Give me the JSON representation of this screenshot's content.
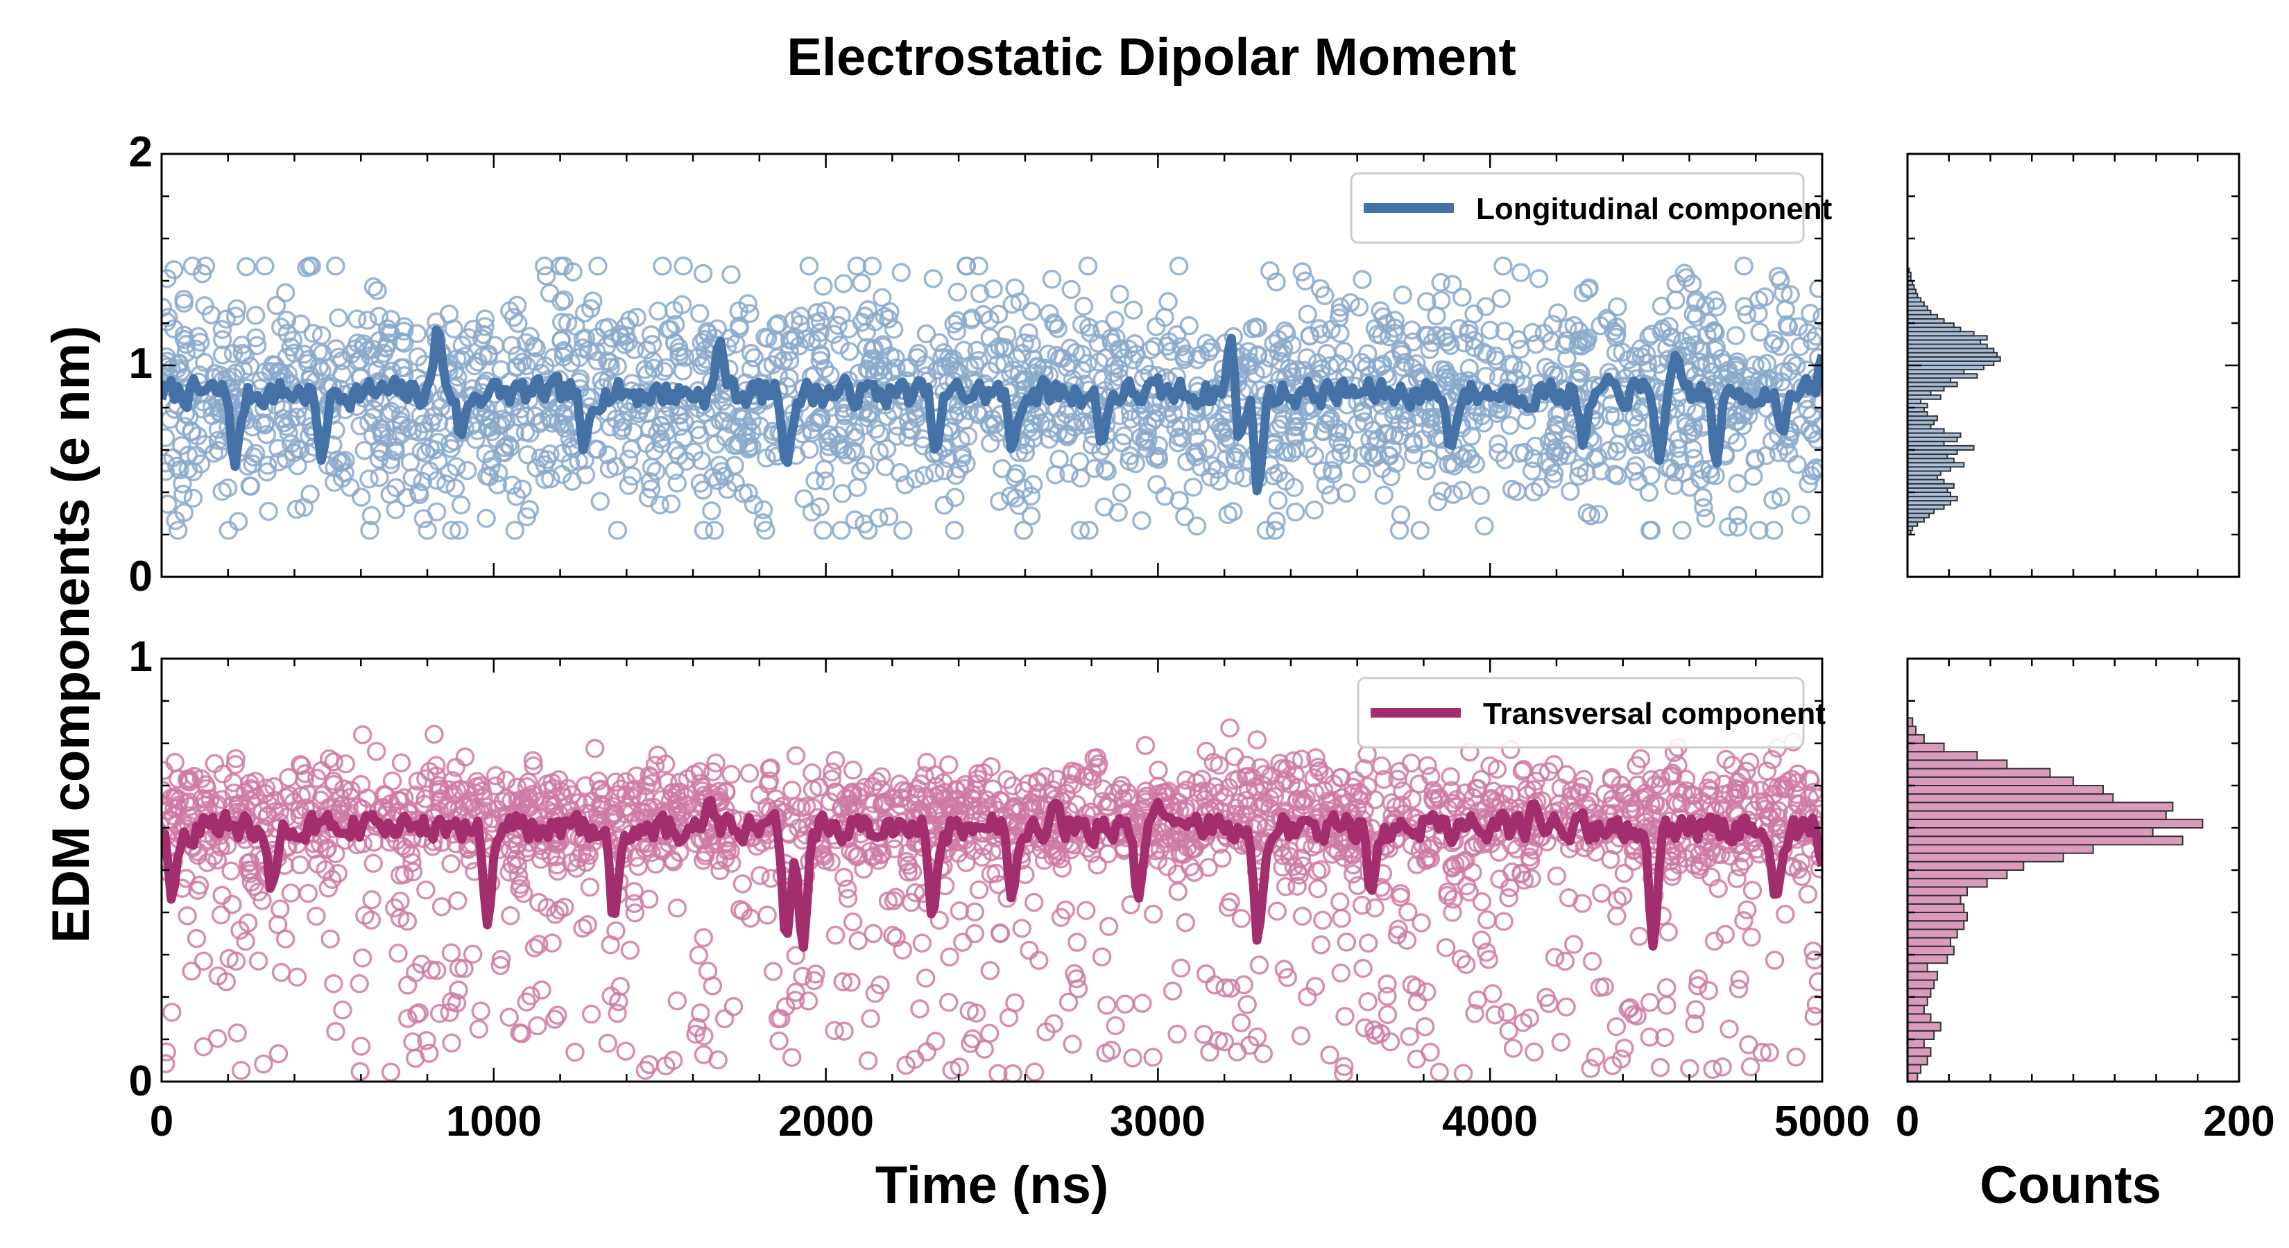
{
  "chart_data": {
    "type": "scatter",
    "title": "Electrostatic Dipolar Moment",
    "ylabel": "EDM components (e nm)",
    "xlabel": "Time (ns)",
    "hist_xlabel": "Counts",
    "xlim": [
      0,
      5000
    ],
    "x_ticks": [
      "0",
      "1000",
      "2000",
      "3000",
      "4000",
      "5000"
    ],
    "hist_xlim": [
      0,
      200
    ],
    "hist_x_ticks": [
      "0",
      "200"
    ],
    "panels": [
      {
        "name": "longitudinal",
        "legend": "Longitudinal component",
        "color": "#4472a6",
        "marker_color": "#8aa9cb",
        "ylim": [
          0,
          2
        ],
        "y_ticks": [
          "0",
          "1",
          "2"
        ],
        "scatter_center": 0.85,
        "scatter_spread": 0.27,
        "scatter_min": 0.22,
        "scatter_max": 1.47,
        "n_points": 2200,
        "running_mean": {
          "baseline": 0.87,
          "dips": [
            [
              220,
              0.52
            ],
            [
              480,
              0.55
            ],
            [
              900,
              0.66
            ],
            [
              1270,
              0.6
            ],
            [
              1880,
              0.52
            ],
            [
              2330,
              0.59
            ],
            [
              2560,
              0.6
            ],
            [
              2830,
              0.63
            ],
            [
              3240,
              0.6
            ],
            [
              3300,
              0.4
            ],
            [
              3880,
              0.6
            ],
            [
              4280,
              0.62
            ],
            [
              4510,
              0.55
            ],
            [
              4680,
              0.53
            ],
            [
              4880,
              0.68
            ]
          ],
          "peaks": [
            [
              830,
              1.18
            ],
            [
              1680,
              1.12
            ],
            [
              3220,
              1.13
            ],
            [
              4560,
              1.05
            ],
            [
              5000,
              1.05
            ]
          ]
        },
        "histogram": {
          "bin_centers": [
            0.21,
            0.23,
            0.25,
            0.27,
            0.29,
            0.31,
            0.33,
            0.35,
            0.37,
            0.39,
            0.41,
            0.43,
            0.45,
            0.47,
            0.49,
            0.51,
            0.53,
            0.55,
            0.57,
            0.59,
            0.61,
            0.63,
            0.65,
            0.67,
            0.69,
            0.71,
            0.73,
            0.75,
            0.77,
            0.79,
            0.81,
            0.83,
            0.85,
            0.87,
            0.89,
            0.91,
            0.93,
            0.95,
            0.97,
            0.99,
            1.01,
            1.03,
            1.05,
            1.07,
            1.09,
            1.11,
            1.13,
            1.15,
            1.17,
            1.19,
            1.21,
            1.23,
            1.25,
            1.27,
            1.29,
            1.31,
            1.33,
            1.35,
            1.37,
            1.39,
            1.41,
            1.43,
            1.45
          ],
          "counts": [
            2,
            3,
            6,
            10,
            13,
            16,
            22,
            26,
            30,
            26,
            24,
            28,
            22,
            18,
            20,
            26,
            34,
            28,
            24,
            30,
            40,
            22,
            30,
            32,
            22,
            14,
            16,
            18,
            12,
            10,
            12,
            8,
            20,
            14,
            22,
            30,
            26,
            42,
            34,
            46,
            52,
            56,
            54,
            52,
            48,
            44,
            48,
            40,
            32,
            28,
            22,
            18,
            14,
            12,
            10,
            8,
            6,
            5,
            4,
            3,
            2,
            2,
            1
          ],
          "bin_width": 0.02
        }
      },
      {
        "name": "transversal",
        "legend": "Transversal component",
        "color": "#a32e6e",
        "marker_color": "#cf7aa6",
        "ylim": [
          0,
          1
        ],
        "y_ticks": [
          "0",
          "1"
        ],
        "scatter_center": 0.62,
        "scatter_spread": 0.07,
        "scatter_min": 0.01,
        "scatter_max": 0.87,
        "n_points": 2200,
        "running_mean": {
          "baseline": 0.6,
          "dips": [
            [
              30,
              0.43
            ],
            [
              330,
              0.45
            ],
            [
              980,
              0.37
            ],
            [
              1360,
              0.38
            ],
            [
              1880,
              0.33
            ],
            [
              1930,
              0.31
            ],
            [
              2320,
              0.39
            ],
            [
              2560,
              0.43
            ],
            [
              2940,
              0.43
            ],
            [
              3300,
              0.33
            ],
            [
              3640,
              0.44
            ],
            [
              4490,
              0.32
            ],
            [
              4860,
              0.43
            ],
            [
              5000,
              0.51
            ]
          ],
          "peaks": [
            [
              1650,
              0.67
            ],
            [
              2690,
              0.66
            ],
            [
              3000,
              0.66
            ],
            [
              4130,
              0.66
            ]
          ]
        },
        "histogram": {
          "bin_centers": [
            0.01,
            0.03,
            0.05,
            0.07,
            0.09,
            0.11,
            0.13,
            0.15,
            0.17,
            0.19,
            0.21,
            0.23,
            0.25,
            0.27,
            0.29,
            0.31,
            0.33,
            0.35,
            0.37,
            0.39,
            0.41,
            0.43,
            0.45,
            0.47,
            0.49,
            0.51,
            0.53,
            0.55,
            0.57,
            0.59,
            0.61,
            0.63,
            0.65,
            0.67,
            0.69,
            0.71,
            0.73,
            0.75,
            0.77,
            0.79,
            0.81,
            0.83,
            0.85
          ],
          "counts": [
            6,
            8,
            12,
            14,
            10,
            16,
            20,
            14,
            10,
            12,
            14,
            16,
            18,
            12,
            24,
            28,
            26,
            30,
            34,
            36,
            34,
            32,
            36,
            48,
            60,
            70,
            94,
            112,
            166,
            148,
            178,
            156,
            160,
            124,
            118,
            100,
            86,
            60,
            42,
            22,
            10,
            5,
            3
          ],
          "bin_width": 0.02
        }
      }
    ]
  }
}
